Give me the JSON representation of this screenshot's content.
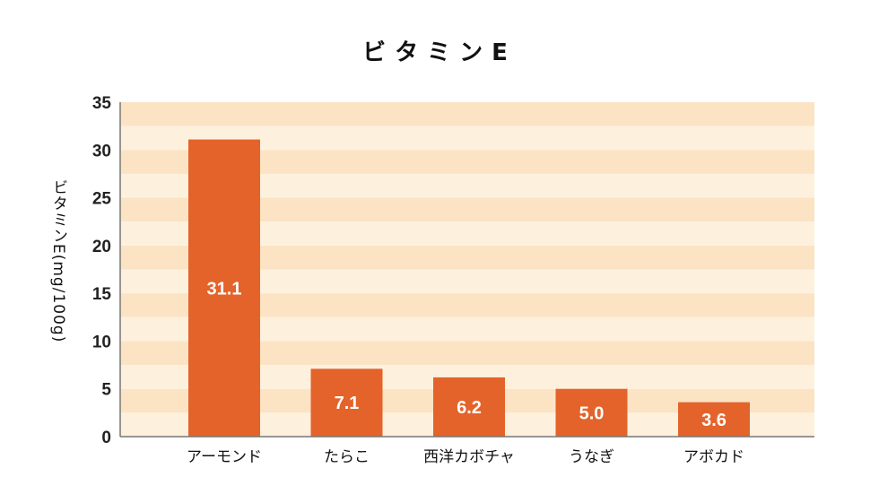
{
  "chart_data": {
    "type": "bar",
    "title": "ビタミンE",
    "ylabel": "ビタミンE(mg/100g)",
    "xlabel": "",
    "categories": [
      "アーモンド",
      "たらこ",
      "西洋カボチャ",
      "うなぎ",
      "アボカド"
    ],
    "values": [
      31.1,
      7.1,
      6.2,
      5.0,
      3.6
    ],
    "data_labels": [
      "31.1",
      "7.1",
      "6.2",
      "5.0",
      "3.6"
    ],
    "ylim": [
      0,
      35
    ],
    "yticks": [
      0,
      5,
      10,
      15,
      20,
      25,
      30,
      35
    ],
    "grid": "alternating horizontal bands",
    "legend": "none",
    "colors": {
      "bar": "#e4632a",
      "band_dark": "#fbe3c4",
      "band_light": "#fdf1de",
      "axis": "#777777"
    }
  }
}
